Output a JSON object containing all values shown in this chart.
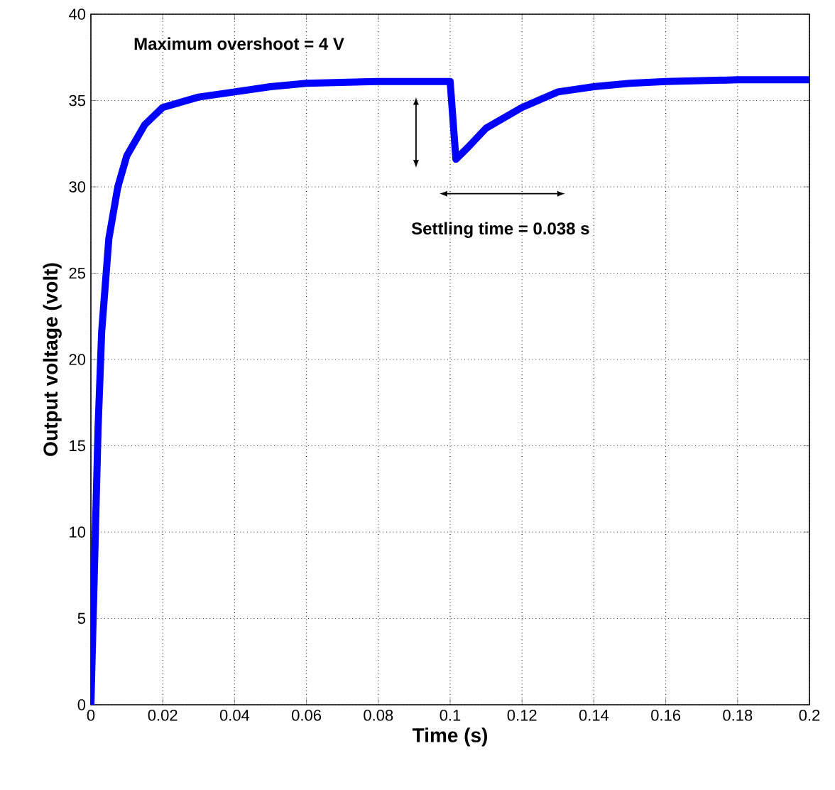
{
  "chart_data": {
    "type": "line",
    "xlabel": "Time (s)",
    "ylabel": "Output voltage (volt)",
    "xlim": [
      0,
      0.2
    ],
    "ylim": [
      0,
      40
    ],
    "xticks": [
      0,
      0.02,
      0.04,
      0.06,
      0.08,
      0.1,
      0.12,
      0.14,
      0.16,
      0.18,
      0.2
    ],
    "yticks": [
      0,
      5,
      10,
      15,
      20,
      25,
      30,
      35,
      40
    ],
    "grid": true,
    "marker": "none",
    "line_style": "solid",
    "x": [
      0,
      0.001,
      0.002,
      0.003,
      0.005,
      0.0075,
      0.01,
      0.015,
      0.02,
      0.03,
      0.04,
      0.05,
      0.06,
      0.08,
      0.1,
      0.1016,
      0.105,
      0.11,
      0.12,
      0.13,
      0.14,
      0.15,
      0.16,
      0.18,
      0.2
    ],
    "series": [
      {
        "color": "#0000ff",
        "values": [
          0,
          8,
          16,
          21.6,
          27,
          30,
          31.8,
          33.6,
          34.6,
          35.2,
          35.5,
          35.8,
          36.0,
          36.1,
          36.1,
          31.6,
          32.3,
          33.4,
          34.6,
          35.5,
          35.8,
          36.0,
          36.1,
          36.2,
          36.2
        ]
      }
    ],
    "annotations": [
      "Maximum overshoot = 4 V",
      "Settling time = 0.038 s"
    ]
  }
}
